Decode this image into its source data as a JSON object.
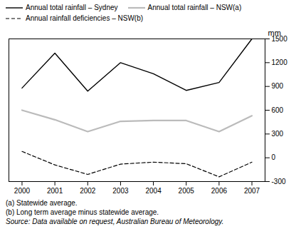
{
  "chart_data": {
    "type": "line",
    "x": [
      2000,
      2001,
      2002,
      2003,
      2004,
      2005,
      2006,
      2007
    ],
    "series": [
      {
        "name": "Annual total rainfall – Sydney",
        "color": "#000000",
        "line_style": "solid",
        "values": [
          880,
          1320,
          840,
          1200,
          1060,
          850,
          950,
          1500
        ]
      },
      {
        "name": "Annual total rainfall – NSW(a)",
        "color": "#bbbbbb",
        "line_style": "solid",
        "values": [
          600,
          480,
          330,
          460,
          470,
          470,
          330,
          530
        ]
      },
      {
        "name": "Annual rainfall deficiencies – NSW(b)",
        "color": "#000000",
        "line_style": "dashed",
        "values": [
          80,
          -90,
          -210,
          -80,
          -55,
          -75,
          -240,
          -55
        ]
      }
    ],
    "xlim": [
      1999.6,
      2007.4
    ],
    "xticks": [
      2000,
      2001,
      2002,
      2003,
      2004,
      2005,
      2006,
      2007
    ],
    "ylim": [
      -300,
      1500
    ],
    "yticks": [
      -300,
      0,
      300,
      600,
      900,
      1200,
      1500
    ],
    "ylabel": "mm",
    "annotations": [
      "(a) Statewide average.",
      "(b) Long term average minus statewide average.",
      "Source: Data available on request, Australian Bureau of Meteorology."
    ],
    "legend": "upper left",
    "grid": false
  }
}
